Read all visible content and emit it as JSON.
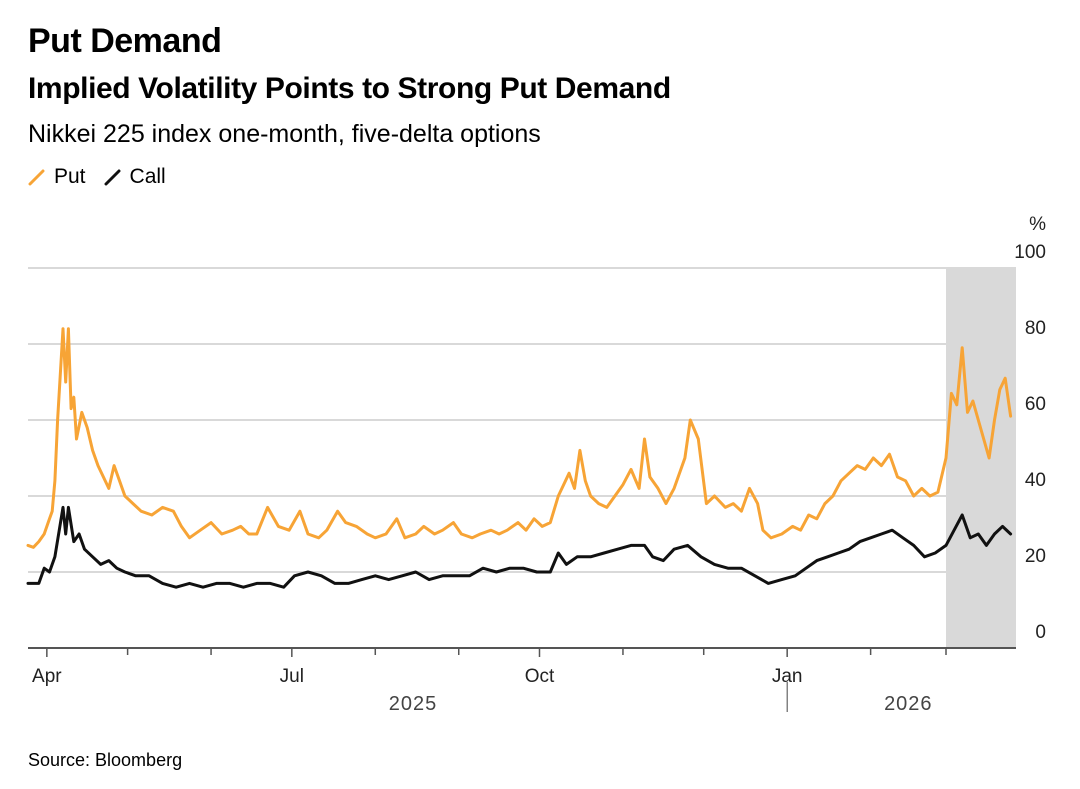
{
  "header": {
    "title": "Put Demand",
    "subtitle": "Implied Volatility Points to Strong Put Demand",
    "description": "Nikkei 225 index one-month, five-delta options"
  },
  "footer": {
    "source": "Source: Bloomberg"
  },
  "colors": {
    "put": "#f7a436",
    "call": "#111111",
    "grid": "#d9d9d9",
    "highlight": "#d9d9d9",
    "axis": "#555555"
  },
  "chart_data": {
    "type": "line",
    "title": "Implied Volatility Points to Strong Put Demand",
    "subtitle": "Nikkei 225 index one-month, five-delta options",
    "xlabel": "",
    "ylabel": "%",
    "ylim": [
      0,
      100
    ],
    "y_ticks": [
      0,
      20,
      40,
      60,
      80,
      100
    ],
    "y_unit_label": "%",
    "x_range": [
      "2025-03-25",
      "2026-03-27"
    ],
    "x_ticks": [
      {
        "date": "2025-04-01",
        "label": "Apr"
      },
      {
        "date": "2025-07-01",
        "label": "Jul"
      },
      {
        "date": "2025-10-01",
        "label": "Oct"
      },
      {
        "date": "2026-01-01",
        "label": "Jan"
      }
    ],
    "minor_ticks": [
      "2025-05-01",
      "2025-06-01",
      "2025-08-01",
      "2025-09-01",
      "2025-11-01",
      "2025-12-01",
      "2026-02-01",
      "2026-03-01"
    ],
    "year_labels": [
      {
        "date": "2025-08-15",
        "label": "2025"
      },
      {
        "date": "2026-02-15",
        "label": "2026"
      }
    ],
    "year_divider": "2026-01-01",
    "highlight_range": [
      "2026-03-01",
      "2026-03-27"
    ],
    "legend": [
      {
        "name": "Put",
        "color": "#f7a436"
      },
      {
        "name": "Call",
        "color": "#111111"
      }
    ],
    "series": [
      {
        "name": "Put",
        "color": "#f7a436",
        "points": [
          [
            "2025-03-25",
            27
          ],
          [
            "2025-03-27",
            26.5
          ],
          [
            "2025-03-29",
            28
          ],
          [
            "2025-03-31",
            30
          ],
          [
            "2025-04-02",
            34
          ],
          [
            "2025-04-03",
            36
          ],
          [
            "2025-04-04",
            44
          ],
          [
            "2025-04-05",
            60
          ],
          [
            "2025-04-07",
            84
          ],
          [
            "2025-04-08",
            70
          ],
          [
            "2025-04-09",
            84
          ],
          [
            "2025-04-10",
            63
          ],
          [
            "2025-04-11",
            66
          ],
          [
            "2025-04-12",
            55
          ],
          [
            "2025-04-14",
            62
          ],
          [
            "2025-04-16",
            58
          ],
          [
            "2025-04-18",
            52
          ],
          [
            "2025-04-20",
            48
          ],
          [
            "2025-04-22",
            45
          ],
          [
            "2025-04-24",
            42
          ],
          [
            "2025-04-26",
            48
          ],
          [
            "2025-04-28",
            44
          ],
          [
            "2025-04-30",
            40
          ],
          [
            "2025-05-03",
            38
          ],
          [
            "2025-05-06",
            36
          ],
          [
            "2025-05-10",
            35
          ],
          [
            "2025-05-14",
            37
          ],
          [
            "2025-05-18",
            36
          ],
          [
            "2025-05-21",
            32
          ],
          [
            "2025-05-24",
            29
          ],
          [
            "2025-05-28",
            31
          ],
          [
            "2025-06-01",
            33
          ],
          [
            "2025-06-05",
            30
          ],
          [
            "2025-06-09",
            31
          ],
          [
            "2025-06-12",
            32
          ],
          [
            "2025-06-15",
            30
          ],
          [
            "2025-06-18",
            30
          ],
          [
            "2025-06-22",
            37
          ],
          [
            "2025-06-26",
            32
          ],
          [
            "2025-06-30",
            31
          ],
          [
            "2025-07-04",
            36
          ],
          [
            "2025-07-07",
            30
          ],
          [
            "2025-07-11",
            29
          ],
          [
            "2025-07-14",
            31
          ],
          [
            "2025-07-18",
            36
          ],
          [
            "2025-07-21",
            33
          ],
          [
            "2025-07-25",
            32
          ],
          [
            "2025-07-29",
            30
          ],
          [
            "2025-08-01",
            29
          ],
          [
            "2025-08-05",
            30
          ],
          [
            "2025-08-09",
            34
          ],
          [
            "2025-08-12",
            29
          ],
          [
            "2025-08-16",
            30
          ],
          [
            "2025-08-19",
            32
          ],
          [
            "2025-08-23",
            30
          ],
          [
            "2025-08-26",
            31
          ],
          [
            "2025-08-30",
            33
          ],
          [
            "2025-09-02",
            30
          ],
          [
            "2025-09-06",
            29
          ],
          [
            "2025-09-09",
            30
          ],
          [
            "2025-09-13",
            31
          ],
          [
            "2025-09-16",
            30
          ],
          [
            "2025-09-19",
            31
          ],
          [
            "2025-09-23",
            33
          ],
          [
            "2025-09-26",
            31
          ],
          [
            "2025-09-29",
            34
          ],
          [
            "2025-10-02",
            32
          ],
          [
            "2025-10-05",
            33
          ],
          [
            "2025-10-08",
            40
          ],
          [
            "2025-10-10",
            43
          ],
          [
            "2025-10-12",
            46
          ],
          [
            "2025-10-14",
            42
          ],
          [
            "2025-10-16",
            52
          ],
          [
            "2025-10-18",
            44
          ],
          [
            "2025-10-20",
            40
          ],
          [
            "2025-10-23",
            38
          ],
          [
            "2025-10-26",
            37
          ],
          [
            "2025-10-29",
            40
          ],
          [
            "2025-11-01",
            43
          ],
          [
            "2025-11-04",
            47
          ],
          [
            "2025-11-07",
            42
          ],
          [
            "2025-11-09",
            55
          ],
          [
            "2025-11-11",
            45
          ],
          [
            "2025-11-14",
            42
          ],
          [
            "2025-11-17",
            38
          ],
          [
            "2025-11-20",
            42
          ],
          [
            "2025-11-24",
            50
          ],
          [
            "2025-11-26",
            60
          ],
          [
            "2025-11-29",
            55
          ],
          [
            "2025-12-02",
            38
          ],
          [
            "2025-12-05",
            40
          ],
          [
            "2025-12-09",
            37
          ],
          [
            "2025-12-12",
            38
          ],
          [
            "2025-12-15",
            36
          ],
          [
            "2025-12-18",
            42
          ],
          [
            "2025-12-21",
            38
          ],
          [
            "2025-12-23",
            31
          ],
          [
            "2025-12-26",
            29
          ],
          [
            "2025-12-30",
            30
          ],
          [
            "2026-01-03",
            32
          ],
          [
            "2026-01-06",
            31
          ],
          [
            "2026-01-09",
            35
          ],
          [
            "2026-01-12",
            34
          ],
          [
            "2026-01-15",
            38
          ],
          [
            "2026-01-18",
            40
          ],
          [
            "2026-01-21",
            44
          ],
          [
            "2026-01-24",
            46
          ],
          [
            "2026-01-27",
            48
          ],
          [
            "2026-01-30",
            47
          ],
          [
            "2026-02-02",
            50
          ],
          [
            "2026-02-05",
            48
          ],
          [
            "2026-02-08",
            51
          ],
          [
            "2026-02-11",
            45
          ],
          [
            "2026-02-14",
            44
          ],
          [
            "2026-02-17",
            40
          ],
          [
            "2026-02-20",
            42
          ],
          [
            "2026-02-23",
            40
          ],
          [
            "2026-02-26",
            41
          ],
          [
            "2026-03-01",
            50
          ],
          [
            "2026-03-03",
            67
          ],
          [
            "2026-03-05",
            64
          ],
          [
            "2026-03-07",
            79
          ],
          [
            "2026-03-09",
            62
          ],
          [
            "2026-03-11",
            65
          ],
          [
            "2026-03-13",
            60
          ],
          [
            "2026-03-15",
            55
          ],
          [
            "2026-03-17",
            50
          ],
          [
            "2026-03-19",
            60
          ],
          [
            "2026-03-21",
            68
          ],
          [
            "2026-03-23",
            71
          ],
          [
            "2026-03-25",
            61
          ]
        ]
      },
      {
        "name": "Call",
        "color": "#111111",
        "points": [
          [
            "2025-03-25",
            17
          ],
          [
            "2025-03-27",
            17
          ],
          [
            "2025-03-29",
            17
          ],
          [
            "2025-03-31",
            21
          ],
          [
            "2025-04-02",
            20
          ],
          [
            "2025-04-04",
            24
          ],
          [
            "2025-04-07",
            37
          ],
          [
            "2025-04-08",
            30
          ],
          [
            "2025-04-09",
            37
          ],
          [
            "2025-04-11",
            28
          ],
          [
            "2025-04-13",
            30
          ],
          [
            "2025-04-15",
            26
          ],
          [
            "2025-04-18",
            24
          ],
          [
            "2025-04-21",
            22
          ],
          [
            "2025-04-24",
            23
          ],
          [
            "2025-04-27",
            21
          ],
          [
            "2025-04-30",
            20
          ],
          [
            "2025-05-04",
            19
          ],
          [
            "2025-05-09",
            19
          ],
          [
            "2025-05-14",
            17
          ],
          [
            "2025-05-19",
            16
          ],
          [
            "2025-05-24",
            17
          ],
          [
            "2025-05-29",
            16
          ],
          [
            "2025-06-03",
            17
          ],
          [
            "2025-06-08",
            17
          ],
          [
            "2025-06-13",
            16
          ],
          [
            "2025-06-18",
            17
          ],
          [
            "2025-06-23",
            17
          ],
          [
            "2025-06-28",
            16
          ],
          [
            "2025-07-02",
            19
          ],
          [
            "2025-07-07",
            20
          ],
          [
            "2025-07-12",
            19
          ],
          [
            "2025-07-17",
            17
          ],
          [
            "2025-07-22",
            17
          ],
          [
            "2025-07-27",
            18
          ],
          [
            "2025-08-01",
            19
          ],
          [
            "2025-08-06",
            18
          ],
          [
            "2025-08-11",
            19
          ],
          [
            "2025-08-16",
            20
          ],
          [
            "2025-08-21",
            18
          ],
          [
            "2025-08-26",
            19
          ],
          [
            "2025-08-31",
            19
          ],
          [
            "2025-09-05",
            19
          ],
          [
            "2025-09-10",
            21
          ],
          [
            "2025-09-15",
            20
          ],
          [
            "2025-09-20",
            21
          ],
          [
            "2025-09-25",
            21
          ],
          [
            "2025-09-30",
            20
          ],
          [
            "2025-10-05",
            20
          ],
          [
            "2025-10-08",
            25
          ],
          [
            "2025-10-11",
            22
          ],
          [
            "2025-10-15",
            24
          ],
          [
            "2025-10-20",
            24
          ],
          [
            "2025-10-25",
            25
          ],
          [
            "2025-10-30",
            26
          ],
          [
            "2025-11-04",
            27
          ],
          [
            "2025-11-09",
            27
          ],
          [
            "2025-11-12",
            24
          ],
          [
            "2025-11-16",
            23
          ],
          [
            "2025-11-20",
            26
          ],
          [
            "2025-11-25",
            27
          ],
          [
            "2025-11-30",
            24
          ],
          [
            "2025-12-05",
            22
          ],
          [
            "2025-12-10",
            21
          ],
          [
            "2025-12-15",
            21
          ],
          [
            "2025-12-20",
            19
          ],
          [
            "2025-12-25",
            17
          ],
          [
            "2025-12-30",
            18
          ],
          [
            "2026-01-04",
            19
          ],
          [
            "2026-01-08",
            21
          ],
          [
            "2026-01-12",
            23
          ],
          [
            "2026-01-16",
            24
          ],
          [
            "2026-01-20",
            25
          ],
          [
            "2026-01-24",
            26
          ],
          [
            "2026-01-28",
            28
          ],
          [
            "2026-02-01",
            29
          ],
          [
            "2026-02-05",
            30
          ],
          [
            "2026-02-09",
            31
          ],
          [
            "2026-02-13",
            29
          ],
          [
            "2026-02-17",
            27
          ],
          [
            "2026-02-21",
            24
          ],
          [
            "2026-02-25",
            25
          ],
          [
            "2026-03-01",
            27
          ],
          [
            "2026-03-04",
            31
          ],
          [
            "2026-03-07",
            35
          ],
          [
            "2026-03-10",
            29
          ],
          [
            "2026-03-13",
            30
          ],
          [
            "2026-03-16",
            27
          ],
          [
            "2026-03-19",
            30
          ],
          [
            "2026-03-22",
            32
          ],
          [
            "2026-03-25",
            30
          ]
        ]
      }
    ]
  }
}
